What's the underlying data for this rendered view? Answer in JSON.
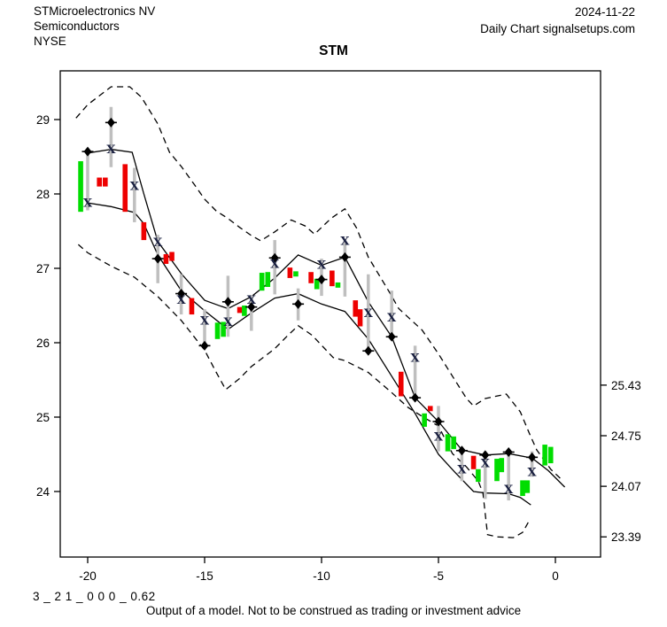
{
  "header": {
    "company": "STMicroelectronics NV",
    "sector": "Semiconductors",
    "exchange": "NYSE",
    "date": "2024-11-22",
    "source": "Daily Chart signalsetups.com"
  },
  "title": "STM",
  "footer": {
    "model_code": "3 _ 2 1 _ 0 0 0 _ 0.62",
    "disclaimer": "Output of a model. Not to be construed as trading or investment advice"
  },
  "colors": {
    "up": "#00DD00",
    "down": "#EE0000",
    "range_bar": "#BFBFBF",
    "band_line": "#000000",
    "diamond": "#000000",
    "x_marker": "#1a2040",
    "axis": "#000000"
  },
  "chart_data": {
    "type": "candlestick-with-bands",
    "title": "STM",
    "xlabel": "",
    "ylabel": "",
    "x_ticks": [
      -20,
      -15,
      -10,
      -5,
      0
    ],
    "y_ticks_left": [
      24,
      25,
      26,
      27,
      28,
      29
    ],
    "y_ticks_right": [
      25.43,
      24.75,
      24.07,
      23.39
    ],
    "x_range": [
      -21.2,
      1.9
    ],
    "y_range": [
      23.12,
      29.65
    ],
    "candles": [
      {
        "t": -20.3,
        "lo": 27.76,
        "hi": 28.44,
        "c": "g"
      },
      {
        "t": -19.5,
        "lo": 28.1,
        "hi": 28.22,
        "c": "r"
      },
      {
        "t": -19.25,
        "lo": 28.1,
        "hi": 28.22,
        "c": "r"
      },
      {
        "t": -18.4,
        "lo": 27.76,
        "hi": 28.4,
        "c": "r"
      },
      {
        "t": -17.6,
        "lo": 27.38,
        "hi": 27.62,
        "c": "r"
      },
      {
        "t": -16.65,
        "lo": 27.06,
        "hi": 27.19,
        "c": "r"
      },
      {
        "t": -16.4,
        "lo": 27.1,
        "hi": 27.22,
        "c": "r"
      },
      {
        "t": -15.55,
        "lo": 26.38,
        "hi": 26.6,
        "c": "r"
      },
      {
        "t": -14.45,
        "lo": 26.05,
        "hi": 26.27,
        "c": "g"
      },
      {
        "t": -14.2,
        "lo": 26.08,
        "hi": 26.28,
        "c": "g"
      },
      {
        "t": -13.5,
        "lo": 26.4,
        "hi": 26.48,
        "c": "r"
      },
      {
        "t": -13.3,
        "lo": 26.36,
        "hi": 26.5,
        "c": "g"
      },
      {
        "t": -12.55,
        "lo": 26.7,
        "hi": 26.94,
        "c": "g"
      },
      {
        "t": -12.3,
        "lo": 26.75,
        "hi": 26.95,
        "c": "g"
      },
      {
        "t": -11.35,
        "lo": 26.87,
        "hi": 27.01,
        "c": "r"
      },
      {
        "t": -11.1,
        "lo": 26.89,
        "hi": 26.96,
        "c": "g"
      },
      {
        "t": -10.45,
        "lo": 26.8,
        "hi": 26.95,
        "c": "r"
      },
      {
        "t": -10.2,
        "lo": 26.72,
        "hi": 26.86,
        "c": "g"
      },
      {
        "t": -9.55,
        "lo": 26.76,
        "hi": 26.97,
        "c": "r"
      },
      {
        "t": -9.3,
        "lo": 26.74,
        "hi": 26.81,
        "c": "g"
      },
      {
        "t": -8.55,
        "lo": 26.35,
        "hi": 26.57,
        "c": "r"
      },
      {
        "t": -8.35,
        "lo": 26.22,
        "hi": 26.45,
        "c": "r"
      },
      {
        "t": -6.6,
        "lo": 25.28,
        "hi": 25.61,
        "c": "r"
      },
      {
        "t": -5.6,
        "lo": 24.87,
        "hi": 25.05,
        "c": "g"
      },
      {
        "t": -5.35,
        "lo": 25.08,
        "hi": 25.15,
        "c": "r"
      },
      {
        "t": -4.6,
        "lo": 24.54,
        "hi": 24.77,
        "c": "g"
      },
      {
        "t": -4.35,
        "lo": 24.57,
        "hi": 24.74,
        "c": "g"
      },
      {
        "t": -3.5,
        "lo": 24.3,
        "hi": 24.48,
        "c": "r"
      },
      {
        "t": -3.3,
        "lo": 24.13,
        "hi": 24.3,
        "c": "g"
      },
      {
        "t": -2.5,
        "lo": 24.14,
        "hi": 24.44,
        "c": "g"
      },
      {
        "t": -2.3,
        "lo": 24.26,
        "hi": 24.45,
        "c": "g"
      },
      {
        "t": -1.4,
        "lo": 23.94,
        "hi": 24.15,
        "c": "g"
      },
      {
        "t": -1.2,
        "lo": 23.98,
        "hi": 24.15,
        "c": "g"
      },
      {
        "t": -0.45,
        "lo": 24.35,
        "hi": 24.63,
        "c": "g"
      },
      {
        "t": -0.2,
        "lo": 24.38,
        "hi": 24.6,
        "c": "g"
      }
    ],
    "ranges": [
      {
        "t": -20,
        "lo": 27.78,
        "hi": 28.55,
        "diamond": 28.57,
        "x": 27.88
      },
      {
        "t": -19,
        "lo": 28.36,
        "hi": 29.17,
        "diamond": 28.96,
        "x": 28.6
      },
      {
        "t": -18,
        "lo": 27.62,
        "hi": 28.35,
        "diamond": null,
        "x": 28.11
      },
      {
        "t": -17,
        "lo": 26.8,
        "hi": 27.45,
        "diamond": 27.13,
        "x": 27.35
      },
      {
        "t": -16,
        "lo": 26.38,
        "hi": 26.92,
        "diamond": 26.66,
        "x": 26.58
      },
      {
        "t": -15,
        "lo": 25.95,
        "hi": 26.45,
        "diamond": 25.96,
        "x": 26.3
      },
      {
        "t": -14,
        "lo": 26.08,
        "hi": 26.9,
        "diamond": 26.55,
        "x": 26.28
      },
      {
        "t": -13,
        "lo": 26.16,
        "hi": 26.64,
        "diamond": 26.48,
        "x": 26.58
      },
      {
        "t": -12,
        "lo": 26.65,
        "hi": 27.38,
        "diamond": 27.14,
        "x": 27.06
      },
      {
        "t": -11,
        "lo": 26.3,
        "hi": 26.73,
        "diamond": 26.52,
        "x": null
      },
      {
        "t": -10,
        "lo": 26.63,
        "hi": 27.13,
        "diamond": 26.85,
        "x": 27.05
      },
      {
        "t": -9,
        "lo": 26.62,
        "hi": 27.4,
        "diamond": 27.15,
        "x": 27.37
      },
      {
        "t": -8,
        "lo": 25.85,
        "hi": 26.92,
        "diamond": 25.89,
        "x": 26.4
      },
      {
        "t": -7,
        "lo": 26.04,
        "hi": 26.7,
        "diamond": 26.08,
        "x": 26.34
      },
      {
        "t": -6,
        "lo": 25.24,
        "hi": 25.96,
        "diamond": 25.26,
        "x": 25.8
      },
      {
        "t": -5,
        "lo": 24.54,
        "hi": 25.15,
        "diamond": 24.94,
        "x": 24.74
      },
      {
        "t": -4,
        "lo": 24.14,
        "hi": 24.6,
        "diamond": 24.55,
        "x": 24.3
      },
      {
        "t": -3,
        "lo": 23.9,
        "hi": 24.54,
        "diamond": 24.49,
        "x": 24.38
      },
      {
        "t": -2,
        "lo": 23.88,
        "hi": 24.57,
        "diamond": 24.53,
        "x": 24.03
      },
      {
        "t": -1,
        "lo": 24.2,
        "hi": 24.54,
        "diamond": 24.46,
        "x": 24.26
      }
    ],
    "bands": {
      "upper_dashed": [
        [
          -20.5,
          29.02
        ],
        [
          -20,
          29.2
        ],
        [
          -19,
          29.44
        ],
        [
          -18.2,
          29.44
        ],
        [
          -17.7,
          29.3
        ],
        [
          -17,
          28.94
        ],
        [
          -16.5,
          28.56
        ],
        [
          -16,
          28.37
        ],
        [
          -15.4,
          28.11
        ],
        [
          -15,
          27.93
        ],
        [
          -14.5,
          27.77
        ],
        [
          -14,
          27.67
        ],
        [
          -13.5,
          27.55
        ],
        [
          -13,
          27.44
        ],
        [
          -12.6,
          27.37
        ],
        [
          -12,
          27.49
        ],
        [
          -11.3,
          27.65
        ],
        [
          -10.7,
          27.57
        ],
        [
          -10.3,
          27.46
        ],
        [
          -9.6,
          27.67
        ],
        [
          -9,
          27.8
        ],
        [
          -8.5,
          27.54
        ],
        [
          -8,
          27.15
        ],
        [
          -7.1,
          26.68
        ],
        [
          -6.7,
          26.46
        ],
        [
          -5.7,
          26.17
        ],
        [
          -5,
          25.85
        ],
        [
          -4.4,
          25.55
        ],
        [
          -3.8,
          25.25
        ],
        [
          -3.5,
          25.15
        ],
        [
          -3,
          25.25
        ],
        [
          -2.1,
          25.31
        ],
        [
          -1.5,
          25.07
        ],
        [
          -1.1,
          24.77
        ],
        [
          -0.8,
          24.56
        ],
        [
          -0.2,
          24.3
        ],
        [
          0.3,
          24.15
        ]
      ],
      "lower_dashed": [
        [
          -20.4,
          27.32
        ],
        [
          -20,
          27.21
        ],
        [
          -19,
          27.03
        ],
        [
          -18,
          26.88
        ],
        [
          -17,
          26.62
        ],
        [
          -16,
          26.3
        ],
        [
          -15,
          25.9
        ],
        [
          -14.5,
          25.6
        ],
        [
          -14.1,
          25.37
        ],
        [
          -13.5,
          25.52
        ],
        [
          -13,
          25.68
        ],
        [
          -12,
          25.92
        ],
        [
          -11.5,
          26.08
        ],
        [
          -11,
          26.23
        ],
        [
          -10.4,
          26.1
        ],
        [
          -9.5,
          25.8
        ],
        [
          -9,
          25.76
        ],
        [
          -8,
          25.6
        ],
        [
          -7,
          25.33
        ],
        [
          -6.3,
          25.13
        ],
        [
          -5.7,
          25.01
        ],
        [
          -5,
          24.88
        ],
        [
          -4.4,
          24.51
        ],
        [
          -3.8,
          24.33
        ],
        [
          -3.3,
          24.14
        ],
        [
          -3.1,
          23.98
        ],
        [
          -2.9,
          23.42
        ],
        [
          -2.5,
          23.39
        ],
        [
          -1.8,
          23.38
        ],
        [
          -1.4,
          23.45
        ],
        [
          -1.1,
          23.62
        ]
      ],
      "upper_solid": [
        [
          -20,
          28.55
        ],
        [
          -19,
          28.6
        ],
        [
          -18.1,
          28.56
        ],
        [
          -17.6,
          28.0
        ],
        [
          -17,
          27.36
        ],
        [
          -16,
          26.93
        ],
        [
          -15,
          26.57
        ],
        [
          -14.3,
          26.49
        ],
        [
          -14,
          26.46
        ],
        [
          -13,
          26.62
        ],
        [
          -12,
          26.87
        ],
        [
          -11,
          27.18
        ],
        [
          -10,
          27.04
        ],
        [
          -9,
          27.15
        ],
        [
          -8,
          26.55
        ],
        [
          -7,
          26.08
        ],
        [
          -6,
          25.26
        ],
        [
          -5,
          24.94
        ],
        [
          -4,
          24.56
        ],
        [
          -3,
          24.49
        ],
        [
          -2,
          24.51
        ],
        [
          -1,
          24.45
        ],
        [
          -0.3,
          24.28
        ],
        [
          0.4,
          24.06
        ]
      ],
      "lower_solid": [
        [
          -20,
          27.88
        ],
        [
          -19,
          27.83
        ],
        [
          -18,
          27.75
        ],
        [
          -17.6,
          27.6
        ],
        [
          -17,
          27.18
        ],
        [
          -16,
          26.7
        ],
        [
          -15,
          26.43
        ],
        [
          -14,
          26.18
        ],
        [
          -13,
          26.4
        ],
        [
          -12,
          26.6
        ],
        [
          -11,
          26.66
        ],
        [
          -10,
          26.52
        ],
        [
          -9,
          26.42
        ],
        [
          -8,
          26.05
        ],
        [
          -7,
          25.55
        ],
        [
          -6,
          25.05
        ],
        [
          -5,
          24.5
        ],
        [
          -4.3,
          24.26
        ],
        [
          -3.5,
          24.0
        ],
        [
          -3,
          23.98
        ],
        [
          -2,
          23.97
        ],
        [
          -1.5,
          23.92
        ],
        [
          -1.05,
          23.82
        ]
      ]
    }
  }
}
